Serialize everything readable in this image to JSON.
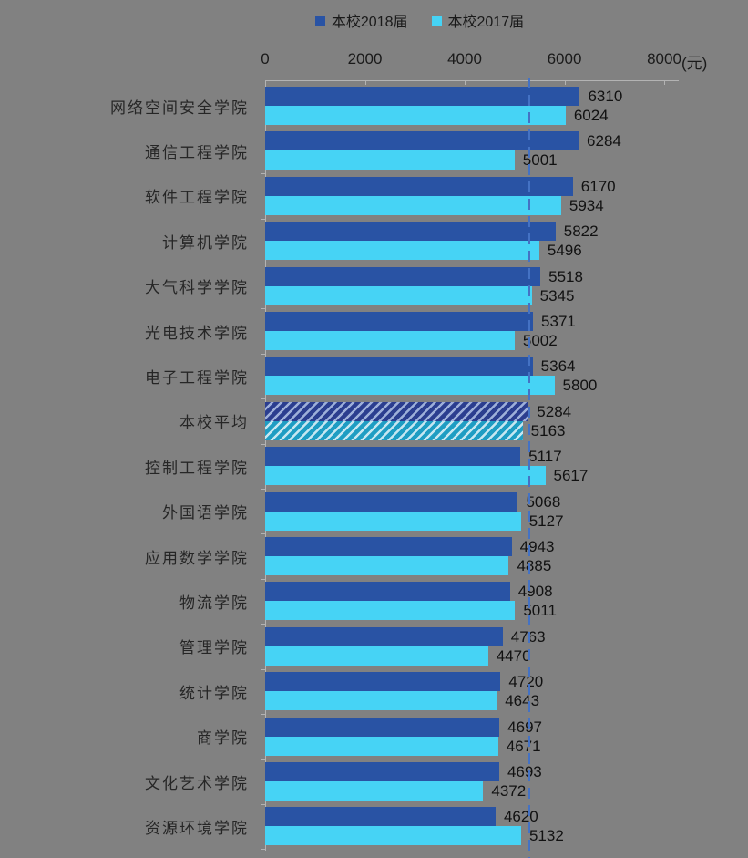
{
  "chart_data": {
    "type": "bar",
    "orientation": "horizontal",
    "title": "",
    "legend_position": "top-center",
    "axis_unit": "(元)",
    "x_ticks": [
      "0",
      "2000",
      "4000",
      "6000",
      "8000"
    ],
    "xlim": [
      0,
      8000
    ],
    "grid": false,
    "categories": [
      "网络空间安全学院",
      "通信工程学院",
      "软件工程学院",
      "计算机学院",
      "大气科学学院",
      "光电技术学院",
      "电子工程学院",
      "本校平均",
      "控制工程学院",
      "外国语学院",
      "应用数学学院",
      "物流学院",
      "管理学院",
      "统计学院",
      "商学院",
      "文化艺术学院",
      "资源环境学院"
    ],
    "series": [
      {
        "name": "本校2018届",
        "color": "#2953A4",
        "values": [
          6310,
          6284,
          6170,
          5822,
          5518,
          5371,
          5364,
          5284,
          5117,
          5068,
          4943,
          4908,
          4763,
          4720,
          4697,
          4693,
          4620
        ]
      },
      {
        "name": "本校2017届",
        "color": "#46D3F5",
        "values": [
          6024,
          5001,
          5934,
          5496,
          5345,
          5002,
          5800,
          5163,
          5617,
          5127,
          4885,
          5011,
          4470,
          4643,
          4671,
          4372,
          5132
        ]
      }
    ],
    "average_category": "本校平均",
    "average_index": 7,
    "hatch_colors": {
      "base_2018": "#2B3E8F",
      "stripe_2018": "#9DAFD9",
      "base_2017": "#1E9DC3",
      "stripe_2017": "#C6E7F1"
    },
    "reference_line": {
      "value": 5284,
      "style": "dashed",
      "color": "#4472C4"
    },
    "colors": {
      "background": "#818181",
      "axis": "#B3B3B3",
      "text": "#1A1A1A"
    }
  }
}
